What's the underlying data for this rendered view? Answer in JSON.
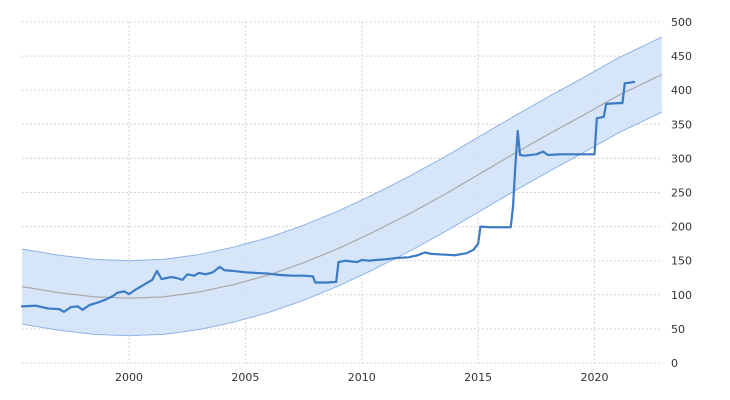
{
  "chart_data": {
    "type": "line",
    "title": "",
    "xlabel": "",
    "ylabel": "",
    "xlim": [
      1995.4,
      2022.9
    ],
    "ylim": [
      0,
      500
    ],
    "x_ticks": [
      2000,
      2005,
      2010,
      2015,
      2020
    ],
    "y_ticks": [
      0,
      50,
      100,
      150,
      200,
      250,
      300,
      350,
      400,
      450,
      500
    ],
    "y_axis_position": "right",
    "grid": true,
    "legend": "none",
    "colors": {
      "series": "#3b7cc4",
      "trend": "#a9a9a9",
      "band_fill": "#cfe0f7",
      "band_edge": "#8fb3e6",
      "grid": "#c8c8c8"
    },
    "series": [
      {
        "values": [
          [
            1995.4,
            83
          ],
          [
            1996.0,
            84
          ],
          [
            1996.5,
            80
          ],
          [
            1997.0,
            79
          ],
          [
            1997.2,
            75
          ],
          [
            1997.5,
            82
          ],
          [
            1997.8,
            83
          ],
          [
            1998.0,
            78
          ],
          [
            1998.3,
            85
          ],
          [
            1998.6,
            88
          ],
          [
            1999.0,
            93
          ],
          [
            1999.3,
            98
          ],
          [
            1999.5,
            103
          ],
          [
            1999.8,
            105
          ],
          [
            2000.0,
            101
          ],
          [
            2000.3,
            108
          ],
          [
            2000.5,
            112
          ],
          [
            2000.8,
            118
          ],
          [
            2001.0,
            122
          ],
          [
            2001.2,
            135
          ],
          [
            2001.4,
            123
          ],
          [
            2001.8,
            126
          ],
          [
            2002.0,
            125
          ],
          [
            2002.3,
            122
          ],
          [
            2002.5,
            130
          ],
          [
            2002.8,
            128
          ],
          [
            2003.0,
            132
          ],
          [
            2003.3,
            130
          ],
          [
            2003.6,
            133
          ],
          [
            2003.9,
            141
          ],
          [
            2004.1,
            136
          ],
          [
            2004.5,
            135
          ],
          [
            2005.0,
            133
          ],
          [
            2005.5,
            132
          ],
          [
            2006.0,
            131
          ],
          [
            2006.5,
            129
          ],
          [
            2007.0,
            128
          ],
          [
            2007.5,
            128
          ],
          [
            2007.9,
            127
          ],
          [
            2008.0,
            118
          ],
          [
            2008.5,
            118
          ],
          [
            2008.9,
            119
          ],
          [
            2009.0,
            148
          ],
          [
            2009.3,
            150
          ],
          [
            2009.5,
            149
          ],
          [
            2009.8,
            148
          ],
          [
            2010.0,
            151
          ],
          [
            2010.3,
            150
          ],
          [
            2010.6,
            151
          ],
          [
            2011.0,
            152
          ],
          [
            2011.5,
            154
          ],
          [
            2012.0,
            155
          ],
          [
            2012.4,
            158
          ],
          [
            2012.7,
            162
          ],
          [
            2013.0,
            160
          ],
          [
            2013.5,
            159
          ],
          [
            2014.0,
            158
          ],
          [
            2014.5,
            161
          ],
          [
            2014.8,
            166
          ],
          [
            2015.0,
            175
          ],
          [
            2015.1,
            200
          ],
          [
            2015.5,
            199
          ],
          [
            2016.0,
            199
          ],
          [
            2016.4,
            199
          ],
          [
            2016.5,
            230
          ],
          [
            2016.6,
            290
          ],
          [
            2016.7,
            340
          ],
          [
            2016.8,
            305
          ],
          [
            2017.0,
            304
          ],
          [
            2017.5,
            306
          ],
          [
            2017.8,
            310
          ],
          [
            2018.0,
            305
          ],
          [
            2018.5,
            306
          ],
          [
            2019.0,
            306
          ],
          [
            2019.5,
            306
          ],
          [
            2020.0,
            306
          ],
          [
            2020.1,
            359
          ],
          [
            2020.4,
            361
          ],
          [
            2020.5,
            380
          ],
          [
            2021.0,
            381
          ],
          [
            2021.2,
            381
          ],
          [
            2021.3,
            410
          ],
          [
            2021.5,
            411
          ],
          [
            2021.7,
            412
          ]
        ]
      }
    ],
    "trend": {
      "values": [
        [
          1995.4,
          112
        ],
        [
          1997.0,
          103
        ],
        [
          1998.5,
          97
        ],
        [
          2000.0,
          95
        ],
        [
          2001.5,
          97
        ],
        [
          2003.0,
          104
        ],
        [
          2004.5,
          115
        ],
        [
          2006.0,
          129
        ],
        [
          2007.5,
          147
        ],
        [
          2009.0,
          168
        ],
        [
          2010.5,
          192
        ],
        [
          2012.0,
          218
        ],
        [
          2013.5,
          246
        ],
        [
          2015.0,
          276
        ],
        [
          2016.5,
          306
        ],
        [
          2018.0,
          335
        ],
        [
          2019.5,
          363
        ],
        [
          2021.0,
          392
        ],
        [
          2022.9,
          423
        ]
      ],
      "band_halfwidth": 55
    }
  }
}
